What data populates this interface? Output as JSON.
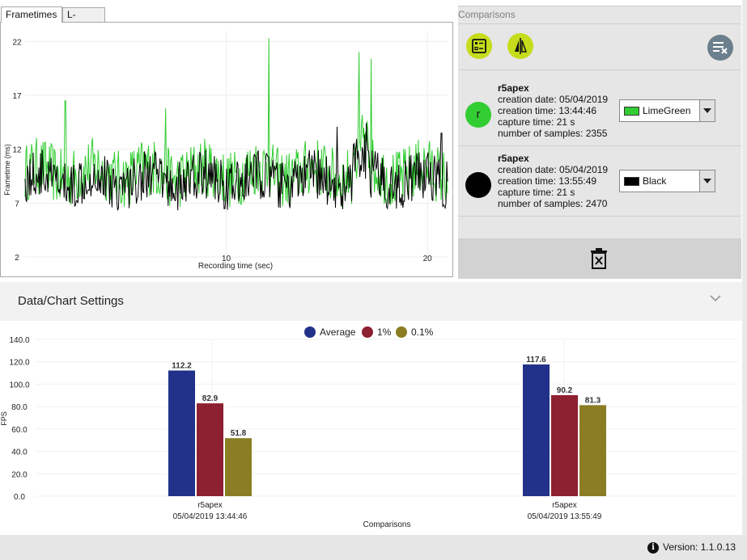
{
  "tabs": [
    {
      "label": "Frametimes",
      "active": true
    },
    {
      "label": "L-shape",
      "active": false
    }
  ],
  "frametime_chart": {
    "title": "",
    "ylabel": "Frametime (ms)",
    "xlabel": "Recording time (sec)",
    "y_ticks": [
      "22",
      "17",
      "12",
      "7",
      "2"
    ],
    "x_ticks": [
      "10",
      "20"
    ],
    "ylim": [
      2,
      23
    ],
    "xlim": [
      0,
      21
    ],
    "series": [
      {
        "name": "r5apex 13:44:46",
        "color": "#32cd32"
      },
      {
        "name": "r5apex 13:55:49",
        "color": "#000000"
      }
    ]
  },
  "comparisons": {
    "title": "Comparisons",
    "entries": [
      {
        "initial": "r",
        "marker_color": "#32cd32",
        "name": "r5apex",
        "creation_date": "creation date: 05/04/2019",
        "creation_time": "creation time: 13:44:46",
        "capture_time": "capture time: 21 s",
        "samples": "number of samples: 2355",
        "color_name": "LimeGreen",
        "swatch": "#32cd32"
      },
      {
        "initial": "",
        "marker_color": "#000000",
        "name": "r5apex",
        "creation_date": "creation date: 05/04/2019",
        "creation_time": "creation time: 13:55:49",
        "capture_time": "capture time: 21 s",
        "samples": "number of samples: 2470",
        "color_name": "Black",
        "swatch": "#000000"
      }
    ]
  },
  "settings": {
    "title": "Data/Chart Settings"
  },
  "chart_data": {
    "type": "bar",
    "title": "",
    "xlabel": "Comparisons",
    "ylabel": "FPS",
    "ylim": [
      0,
      140
    ],
    "y_ticks": [
      "140.0",
      "120.0",
      "100.0",
      "80.0",
      "60.0",
      "40.0",
      "20.0",
      "0.0"
    ],
    "categories": [
      {
        "name": "r5apex",
        "date": "05/04/2019 13:44:46"
      },
      {
        "name": "r5apex",
        "date": "05/04/2019 13:55:49"
      }
    ],
    "series": [
      {
        "name": "Average",
        "color": "#22318a",
        "values": [
          112.2,
          117.6
        ],
        "labels": [
          "112.2",
          "117.6"
        ]
      },
      {
        "name": "1%",
        "color": "#8d2031",
        "values": [
          82.9,
          90.2
        ],
        "labels": [
          "82.9",
          "90.2"
        ]
      },
      {
        "name": "0.1%",
        "color": "#8b7d24",
        "values": [
          51.8,
          81.3
        ],
        "labels": [
          "51.8",
          "81.3"
        ]
      }
    ],
    "legend_position": "top-center"
  },
  "footer": {
    "version": "Version: 1.1.0.13"
  }
}
